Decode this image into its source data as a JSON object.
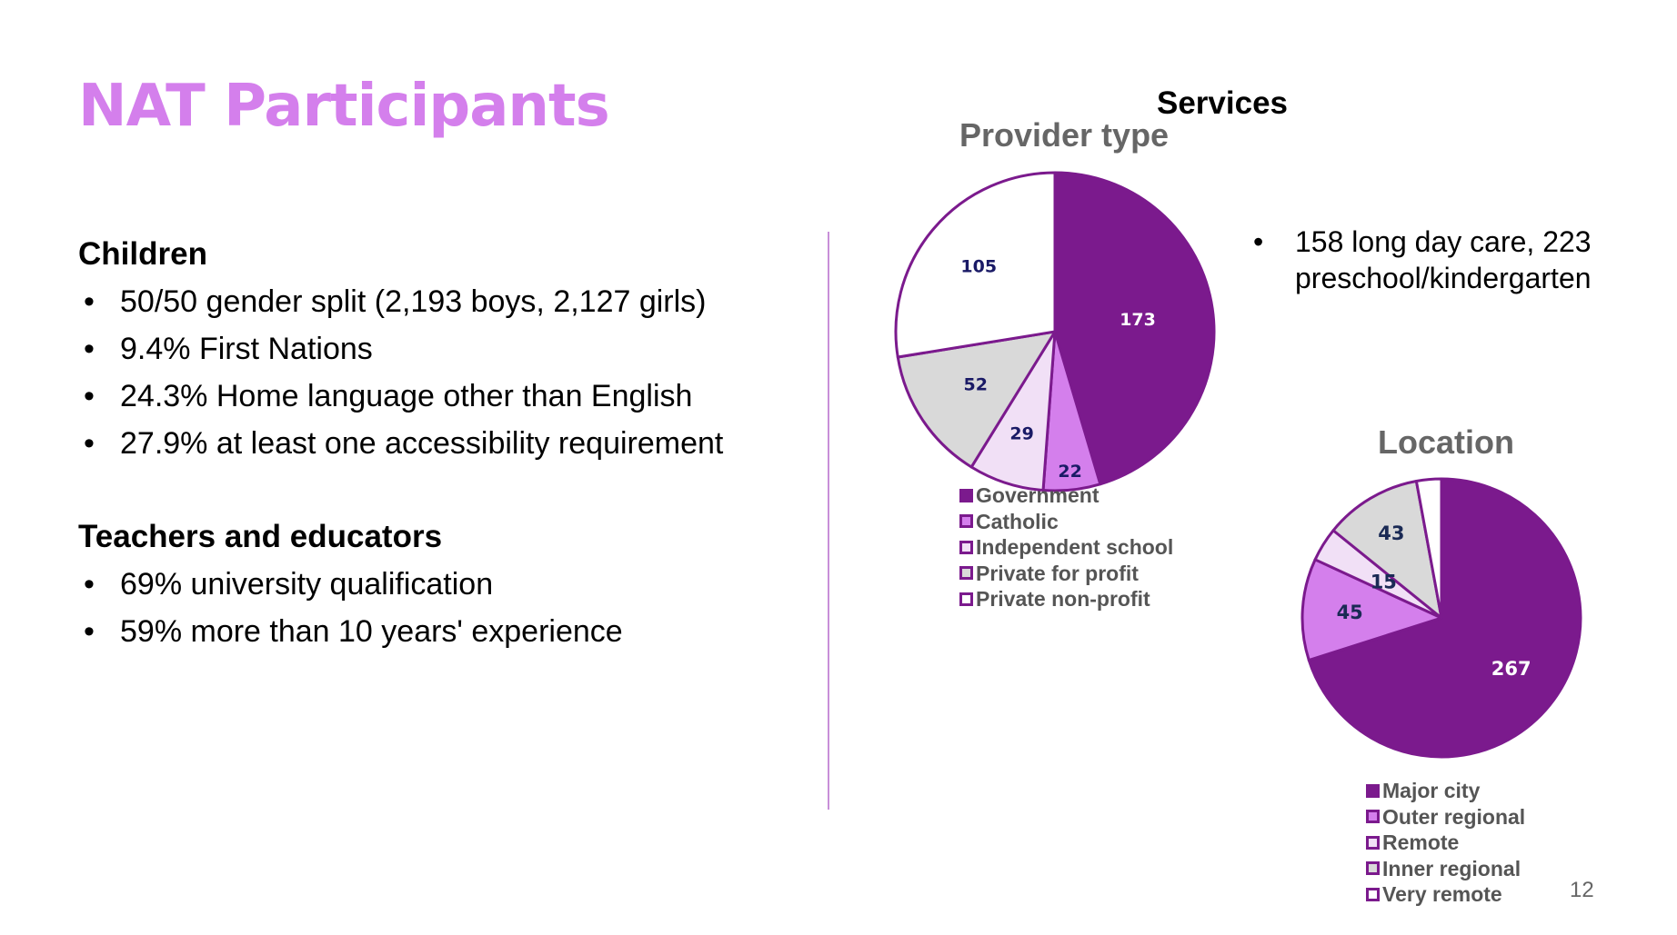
{
  "slide": {
    "title": "NAT Participants",
    "page_number": "12"
  },
  "children": {
    "heading": "Children",
    "items": [
      "50/50 gender split (2,193 boys, 2,127 girls)",
      "9.4% First Nations",
      "24.3% Home language other than English",
      "27.9% at least one accessibility requirement"
    ]
  },
  "teachers": {
    "heading": "Teachers and educators",
    "items": [
      "69% university qualification",
      "59% more than 10 years' experience"
    ]
  },
  "services": {
    "heading": "Services",
    "bullet": "158 long day care, 223 preschool/kindergarten"
  },
  "colors": {
    "title": "#d47fec",
    "dark_purple": "#7b1a8d",
    "light_purple": "#d47fec",
    "pale_purple": "#f1e0f6",
    "gray": "#d9d9d9",
    "white": "#ffffff"
  },
  "chart_data": [
    {
      "type": "pie",
      "title": "Provider type",
      "legend": "bottom",
      "slices": [
        {
          "label": "Government",
          "value": 173,
          "color": "#7b1a8d",
          "label_color": "#ffffff"
        },
        {
          "label": "Catholic",
          "value": 22,
          "color": "#d47fec",
          "label_color": "#1a1a66"
        },
        {
          "label": "Independent school",
          "value": 29,
          "color": "#f1e0f6",
          "label_color": "#1a1a66"
        },
        {
          "label": "Private for profit",
          "value": 52,
          "color": "#d9d9d9",
          "label_color": "#1a1a66"
        },
        {
          "label": "Private non-profit",
          "value": 105,
          "color": "#ffffff",
          "label_color": "#1a1a66"
        }
      ]
    },
    {
      "type": "pie",
      "title": "Location",
      "legend": "bottom",
      "slices": [
        {
          "label": "Major city",
          "value": 267,
          "color": "#7b1a8d",
          "label_color": "#ffffff"
        },
        {
          "label": "Outer regional",
          "value": 45,
          "color": "#d47fec",
          "label_color": "#1a2a55"
        },
        {
          "label": "Remote",
          "value": 15,
          "color": "#f1e0f6",
          "label_color": "#1a2a55"
        },
        {
          "label": "Inner regional",
          "value": 43,
          "color": "#d9d9d9",
          "label_color": "#1a2a55"
        },
        {
          "label": "Very remote",
          "value": 11,
          "color": "#ffffff",
          "label_color": "#1a2a55",
          "show_label": false
        }
      ]
    }
  ]
}
